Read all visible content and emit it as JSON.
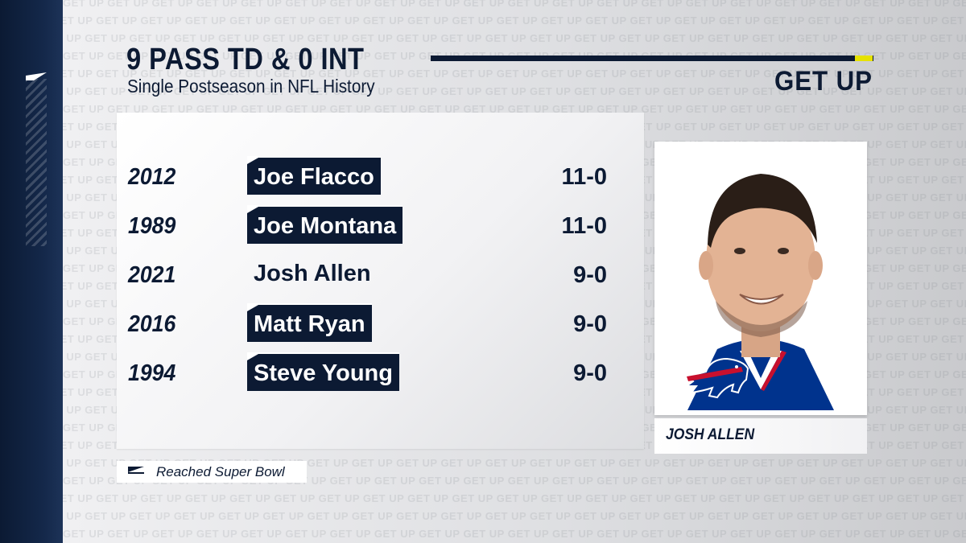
{
  "graphic": {
    "title": "9 PASS TD & 0 INT",
    "subtitle": "Single Postseason in NFL History",
    "brand": "GET UP",
    "background_text": "GET UP"
  },
  "rows": [
    {
      "year": "2012",
      "name": "Joe Flacco",
      "record": "11-0",
      "reached_super_bowl": true
    },
    {
      "year": "1989",
      "name": "Joe Montana",
      "record": "11-0",
      "reached_super_bowl": true
    },
    {
      "year": "2021",
      "name": "Josh Allen",
      "record": "9-0",
      "reached_super_bowl": false
    },
    {
      "year": "2016",
      "name": "Matt Ryan",
      "record": "9-0",
      "reached_super_bowl": true
    },
    {
      "year": "1994",
      "name": "Steve Young",
      "record": "9-0",
      "reached_super_bowl": true
    }
  ],
  "featured": {
    "name": "JOSH ALLEN",
    "team_logo_icon": "buffalo-bills-logo-icon"
  },
  "legend": {
    "label": "Reached Super Bowl"
  },
  "colors": {
    "navy": "#0c1a33",
    "accent_yellow": "#e6e200",
    "bills_red": "#c8102e",
    "bills_blue": "#00338d"
  }
}
